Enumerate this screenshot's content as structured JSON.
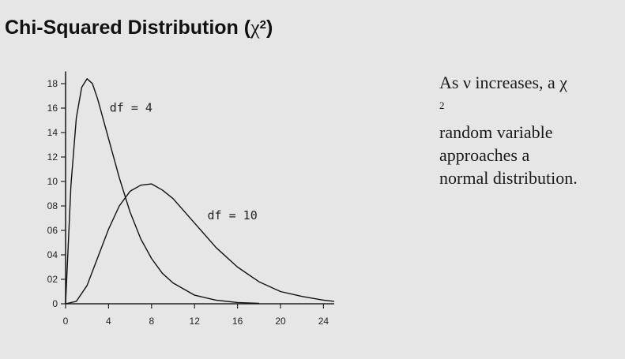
{
  "page": {
    "title_prefix": "Chi-Squared Distribution (",
    "title_symbol": "χ",
    "title_superscript": "2",
    "title_suffix": ")",
    "caption_line1_prefix": "As ν increases, a χ",
    "caption_line1_sup": "2",
    "caption_line2": "random variable",
    "caption_line3": "approaches a",
    "caption_line4": "normal distribution."
  },
  "chart_data": {
    "type": "line",
    "title": "",
    "xlabel": "",
    "ylabel": "",
    "xlim": [
      0,
      25
    ],
    "ylim": [
      0,
      19
    ],
    "x_ticks": [
      0,
      4,
      8,
      12,
      16,
      20,
      24
    ],
    "y_ticks": [
      0,
      2,
      4,
      6,
      8,
      10,
      12,
      14,
      16,
      18
    ],
    "y_tick_labels": [
      "0",
      "02",
      "04",
      "06",
      "08",
      "10",
      "12",
      "14",
      "16",
      "18"
    ],
    "grid": false,
    "series": [
      {
        "name": "df = 4",
        "x": [
          0,
          0.5,
          1,
          1.5,
          2,
          2.5,
          3,
          4,
          5,
          6,
          7,
          8,
          9,
          10,
          12,
          14,
          16,
          18
        ],
        "y": [
          0,
          9.7,
          15.2,
          17.7,
          18.4,
          18.0,
          16.7,
          13.5,
          10.3,
          7.5,
          5.3,
          3.7,
          2.5,
          1.7,
          0.7,
          0.3,
          0.1,
          0.04
        ]
      },
      {
        "name": "df = 10",
        "x": [
          0,
          1,
          2,
          3,
          4,
          5,
          6,
          7,
          8,
          9,
          10,
          11,
          12,
          14,
          16,
          18,
          20,
          22,
          24,
          25
        ],
        "y": [
          0,
          0.2,
          1.5,
          3.8,
          6.1,
          8.0,
          9.2,
          9.7,
          9.8,
          9.3,
          8.6,
          7.6,
          6.6,
          4.6,
          3.0,
          1.8,
          1.0,
          0.6,
          0.3,
          0.2
        ]
      }
    ]
  }
}
